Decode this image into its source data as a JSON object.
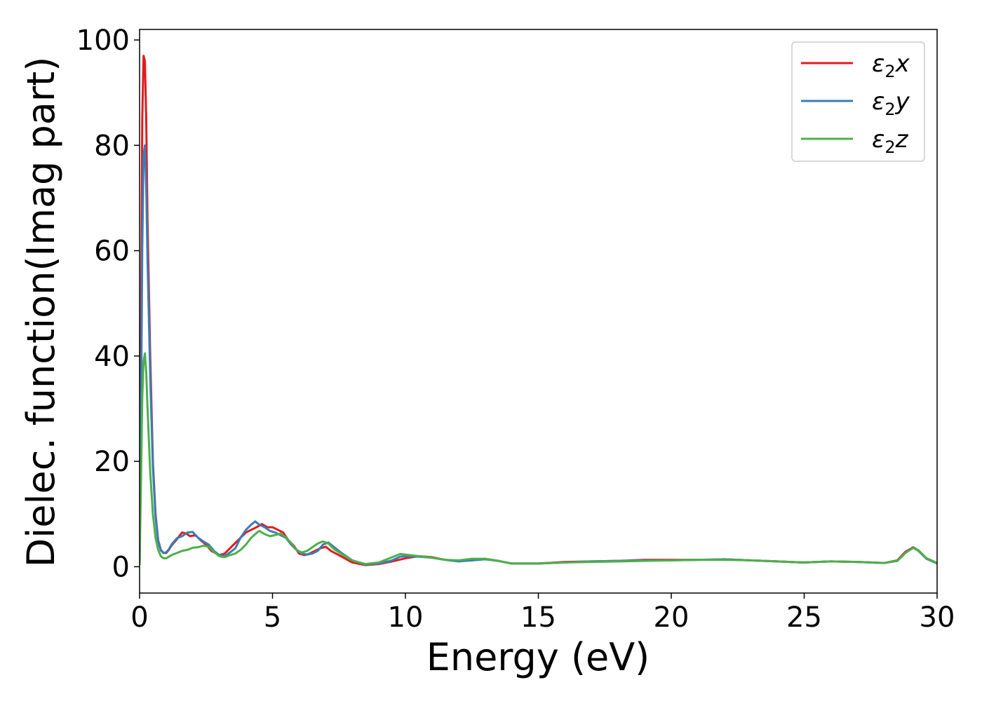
{
  "chart_data": {
    "type": "line",
    "title": "",
    "xlabel": "Energy (eV)",
    "ylabel": "Dielec. function(Imag part)",
    "xlim": [
      0,
      30
    ],
    "ylim": [
      -5,
      102
    ],
    "xticks": [
      0,
      5,
      10,
      15,
      20,
      25,
      30
    ],
    "xtick_labels": [
      "0",
      "5",
      "10",
      "15",
      "20",
      "25",
      "30"
    ],
    "yticks": [
      0,
      20,
      40,
      60,
      80,
      100
    ],
    "ytick_labels": [
      "0",
      "20",
      "40",
      "60",
      "80",
      "100"
    ],
    "grid": false,
    "legend_position": "top-right",
    "series": [
      {
        "name": "ε2x",
        "legend_sub": "2",
        "legend_var": "x",
        "color": "#e41a1c",
        "x": [
          0.0,
          0.05,
          0.1,
          0.15,
          0.2,
          0.25,
          0.3,
          0.4,
          0.5,
          0.6,
          0.7,
          0.8,
          0.9,
          1.0,
          1.1,
          1.2,
          1.4,
          1.6,
          1.75,
          1.9,
          2.1,
          2.3,
          2.5,
          2.7,
          3.0,
          3.2,
          3.4,
          3.6,
          3.8,
          4.0,
          4.2,
          4.4,
          4.6,
          4.8,
          5.0,
          5.2,
          5.4,
          5.6,
          5.8,
          6.0,
          6.2,
          6.4,
          6.6,
          6.8,
          7.0,
          7.2,
          7.5,
          8.0,
          8.5,
          9.0,
          9.5,
          10.0,
          10.5,
          11.0,
          11.5,
          12.0,
          12.5,
          13.0,
          13.5,
          14.0,
          15.0,
          16.0,
          17.0,
          18.0,
          19.0,
          20.0,
          21.0,
          22.0,
          23.0,
          24.0,
          25.0,
          26.0,
          27.0,
          28.0,
          28.5,
          28.8,
          29.1,
          29.3,
          29.6,
          30.0
        ],
        "y": [
          0.5,
          40,
          85,
          97,
          96,
          85,
          65,
          40,
          20,
          10,
          5,
          3.2,
          2.6,
          2.6,
          3.2,
          4,
          5.2,
          6.5,
          6.3,
          5.8,
          6,
          5,
          4.2,
          3,
          2.2,
          2.5,
          3.5,
          4.5,
          5.5,
          6.5,
          7,
          7.5,
          8.1,
          7.5,
          7.5,
          7,
          6.5,
          5,
          4,
          2.5,
          2.2,
          2.5,
          3,
          3.5,
          3.8,
          3,
          2.2,
          0.8,
          0.3,
          0.5,
          1,
          1.6,
          2.0,
          1.8,
          1.3,
          1.1,
          1.2,
          1.5,
          1.1,
          0.6,
          0.6,
          0.9,
          1.0,
          1.1,
          1.3,
          1.3,
          1.3,
          1.4,
          1.2,
          1.0,
          0.8,
          1.0,
          0.9,
          0.7,
          1.2,
          2.8,
          3.7,
          3.1,
          1.6,
          0.7
        ]
      },
      {
        "name": "ε2y",
        "legend_sub": "2",
        "legend_var": "y",
        "color": "#377eb8",
        "x": [
          0.0,
          0.05,
          0.1,
          0.15,
          0.2,
          0.25,
          0.3,
          0.4,
          0.5,
          0.6,
          0.7,
          0.8,
          0.9,
          1.0,
          1.1,
          1.2,
          1.4,
          1.6,
          1.8,
          2.0,
          2.2,
          2.4,
          2.6,
          2.8,
          3.0,
          3.2,
          3.4,
          3.6,
          3.8,
          4.0,
          4.2,
          4.35,
          4.5,
          4.7,
          4.9,
          5.1,
          5.3,
          5.5,
          5.7,
          5.9,
          6.1,
          6.3,
          6.5,
          6.7,
          6.9,
          7.1,
          7.3,
          7.6,
          8.0,
          8.5,
          9.0,
          9.5,
          9.8,
          10.0,
          10.5,
          11.0,
          11.5,
          12.0,
          12.5,
          13.0,
          13.5,
          14.0,
          15.0,
          16.0,
          17.0,
          18.0,
          19.0,
          20.0,
          21.0,
          22.0,
          23.0,
          24.0,
          25.0,
          26.0,
          27.0,
          28.0,
          28.5,
          28.8,
          29.1,
          29.3,
          29.6,
          30.0
        ],
        "y": [
          0.5,
          25,
          60,
          78,
          80,
          72,
          58,
          36,
          19,
          9.5,
          4.8,
          3.1,
          2.6,
          2.7,
          3.3,
          4.2,
          5.4,
          5.8,
          6.5,
          6.6,
          5.5,
          4.8,
          4.2,
          3,
          2.2,
          2.0,
          2.7,
          3.5,
          5.5,
          7,
          8,
          8.6,
          8.0,
          7.5,
          6.8,
          6.5,
          6.0,
          5.5,
          4.2,
          3.2,
          2.5,
          2.3,
          2.5,
          3.0,
          4.2,
          4.6,
          3.8,
          2.6,
          1.2,
          0.4,
          0.6,
          1.2,
          1.9,
          2.0,
          1.9,
          1.7,
          1.3,
          1.0,
          1.2,
          1.4,
          1.1,
          0.6,
          0.6,
          0.8,
          1.0,
          1.1,
          1.2,
          1.2,
          1.3,
          1.4,
          1.2,
          1.0,
          0.8,
          1.0,
          0.9,
          0.7,
          1.1,
          2.6,
          3.6,
          3.0,
          1.5,
          0.6
        ]
      },
      {
        "name": "ε2z",
        "legend_sub": "2",
        "legend_var": "z",
        "color": "#4daf4a",
        "x": [
          0.0,
          0.05,
          0.1,
          0.15,
          0.2,
          0.25,
          0.3,
          0.4,
          0.5,
          0.6,
          0.7,
          0.8,
          0.9,
          1.0,
          1.1,
          1.2,
          1.4,
          1.6,
          1.8,
          2.0,
          2.2,
          2.4,
          2.6,
          2.8,
          3.0,
          3.2,
          3.4,
          3.6,
          3.8,
          4.0,
          4.2,
          4.4,
          4.5,
          4.7,
          4.9,
          5.1,
          5.3,
          5.5,
          5.7,
          5.9,
          6.1,
          6.3,
          6.5,
          6.7,
          6.9,
          7.1,
          7.3,
          7.6,
          8.0,
          8.5,
          9.0,
          9.5,
          9.8,
          10.0,
          10.5,
          11.0,
          11.5,
          12.0,
          12.5,
          13.0,
          13.5,
          14.0,
          15.0,
          16.0,
          17.0,
          18.0,
          19.0,
          20.0,
          21.0,
          22.0,
          23.0,
          24.0,
          25.0,
          26.0,
          27.0,
          28.0,
          28.5,
          28.8,
          29.1,
          29.3,
          29.6,
          30.0
        ],
        "y": [
          0.5,
          15,
          32,
          39,
          40.5,
          37,
          30,
          18,
          10,
          5.5,
          3.2,
          2.0,
          1.6,
          1.6,
          1.9,
          2.2,
          2.6,
          3.0,
          3.2,
          3.6,
          3.7,
          4.0,
          3.8,
          2.8,
          2.0,
          1.8,
          2.2,
          2.5,
          3.2,
          4.2,
          5.5,
          6.4,
          6.8,
          6.2,
          5.8,
          6.0,
          6.3,
          5.6,
          4.5,
          3.2,
          2.7,
          3.0,
          3.7,
          4.4,
          4.8,
          4.4,
          3.4,
          2.4,
          1.2,
          0.5,
          0.8,
          1.8,
          2.4,
          2.3,
          2.0,
          1.7,
          1.3,
          1.2,
          1.5,
          1.5,
          1.1,
          0.6,
          0.6,
          0.8,
          0.9,
          1.0,
          1.1,
          1.2,
          1.3,
          1.3,
          1.2,
          1.0,
          0.8,
          1.0,
          0.9,
          0.7,
          1.1,
          2.6,
          3.6,
          3.1,
          1.6,
          0.7
        ]
      }
    ]
  }
}
